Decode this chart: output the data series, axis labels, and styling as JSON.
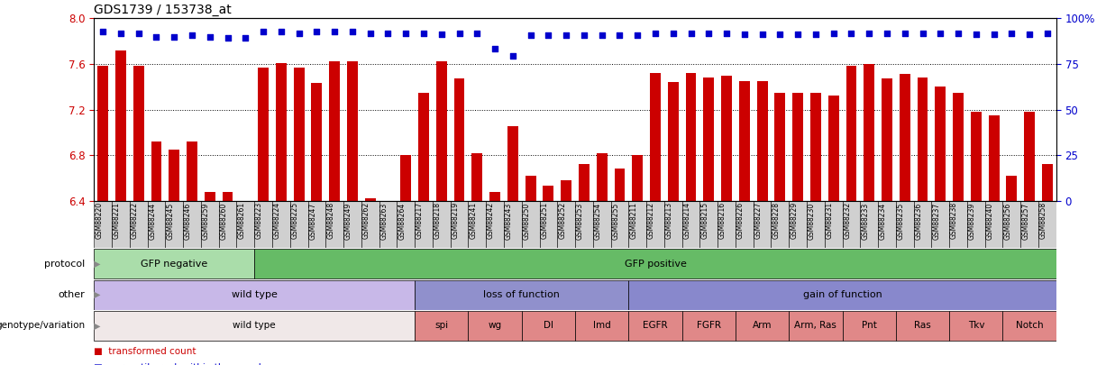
{
  "title": "GDS1739 / 153738_at",
  "bar_color": "#cc0000",
  "dot_color": "#0000cc",
  "ylim": [
    6.4,
    8.0
  ],
  "yticks": [
    6.4,
    6.8,
    7.2,
    7.6,
    8.0
  ],
  "right_yticks_labels": [
    "0",
    "25",
    "50",
    "75",
    "100%"
  ],
  "right_yticks_vals": [
    6.4,
    6.8,
    7.2,
    7.6,
    8.0
  ],
  "samples": [
    "GSM88220",
    "GSM88221",
    "GSM88222",
    "GSM88244",
    "GSM88245",
    "GSM88246",
    "GSM88259",
    "GSM88260",
    "GSM88261",
    "GSM88223",
    "GSM88224",
    "GSM88225",
    "GSM88247",
    "GSM88248",
    "GSM88249",
    "GSM88262",
    "GSM88263",
    "GSM88264",
    "GSM88217",
    "GSM88218",
    "GSM88219",
    "GSM88241",
    "GSM88242",
    "GSM88243",
    "GSM88250",
    "GSM88251",
    "GSM88252",
    "GSM88253",
    "GSM88254",
    "GSM88255",
    "GSM88211",
    "GSM88212",
    "GSM88213",
    "GSM88214",
    "GSM88215",
    "GSM88216",
    "GSM88226",
    "GSM88227",
    "GSM88228",
    "GSM88229",
    "GSM88230",
    "GSM88231",
    "GSM88232",
    "GSM88233",
    "GSM88234",
    "GSM88235",
    "GSM88236",
    "GSM88237",
    "GSM88238",
    "GSM88239",
    "GSM88240",
    "GSM88256",
    "GSM88257",
    "GSM88258"
  ],
  "bar_values": [
    7.58,
    7.72,
    7.58,
    6.92,
    6.85,
    6.92,
    6.48,
    6.48,
    6.4,
    7.57,
    7.61,
    7.57,
    7.43,
    7.62,
    7.62,
    6.42,
    6.38,
    6.8,
    7.35,
    7.62,
    7.47,
    6.82,
    6.48,
    7.05,
    6.62,
    6.53,
    6.58,
    6.72,
    6.82,
    6.68,
    6.8,
    7.52,
    7.44,
    7.52,
    7.48,
    7.5,
    7.45,
    7.45,
    7.35,
    7.35,
    7.35,
    7.32,
    7.58,
    7.6,
    7.47,
    7.51,
    7.48,
    7.4,
    7.35,
    7.18,
    7.15,
    6.62,
    7.18,
    6.72
  ],
  "dot_values": [
    7.88,
    7.87,
    7.87,
    7.84,
    7.84,
    7.85,
    7.84,
    7.83,
    7.83,
    7.88,
    7.88,
    7.87,
    7.88,
    7.88,
    7.88,
    7.87,
    7.87,
    7.87,
    7.87,
    7.86,
    7.87,
    7.87,
    7.73,
    7.67,
    7.85,
    7.85,
    7.85,
    7.85,
    7.85,
    7.85,
    7.85,
    7.87,
    7.87,
    7.87,
    7.87,
    7.87,
    7.86,
    7.86,
    7.86,
    7.86,
    7.86,
    7.87,
    7.87,
    7.87,
    7.87,
    7.87,
    7.87,
    7.87,
    7.87,
    7.86,
    7.86,
    7.87,
    7.86,
    7.87
  ],
  "protocol_groups": [
    {
      "label": "GFP negative",
      "start": 0,
      "end": 9,
      "color": "#aaddaa"
    },
    {
      "label": "GFP positive",
      "start": 9,
      "end": 54,
      "color": "#66bb66"
    }
  ],
  "other_groups": [
    {
      "label": "wild type",
      "start": 0,
      "end": 18,
      "color": "#c8b8e8"
    },
    {
      "label": "loss of function",
      "start": 18,
      "end": 30,
      "color": "#9090cc"
    },
    {
      "label": "gain of function",
      "start": 30,
      "end": 54,
      "color": "#8888cc"
    }
  ],
  "genotype_groups": [
    {
      "label": "wild type",
      "start": 0,
      "end": 18,
      "color": "#f0e8e8"
    },
    {
      "label": "spi",
      "start": 18,
      "end": 21,
      "color": "#e08888"
    },
    {
      "label": "wg",
      "start": 21,
      "end": 24,
      "color": "#e08888"
    },
    {
      "label": "Dl",
      "start": 24,
      "end": 27,
      "color": "#e08888"
    },
    {
      "label": "Imd",
      "start": 27,
      "end": 30,
      "color": "#e08888"
    },
    {
      "label": "EGFR",
      "start": 30,
      "end": 33,
      "color": "#e08888"
    },
    {
      "label": "FGFR",
      "start": 33,
      "end": 36,
      "color": "#e08888"
    },
    {
      "label": "Arm",
      "start": 36,
      "end": 39,
      "color": "#e08888"
    },
    {
      "label": "Arm, Ras",
      "start": 39,
      "end": 42,
      "color": "#e08888"
    },
    {
      "label": "Pnt",
      "start": 42,
      "end": 45,
      "color": "#e08888"
    },
    {
      "label": "Ras",
      "start": 45,
      "end": 48,
      "color": "#e08888"
    },
    {
      "label": "Tkv",
      "start": 48,
      "end": 51,
      "color": "#e08888"
    },
    {
      "label": "Notch",
      "start": 51,
      "end": 54,
      "color": "#e08888"
    }
  ],
  "bg_color": "#ffffff",
  "tick_color": "#cc0000",
  "right_tick_color": "#0000cc",
  "xtick_bg_color": "#d0d0d0"
}
